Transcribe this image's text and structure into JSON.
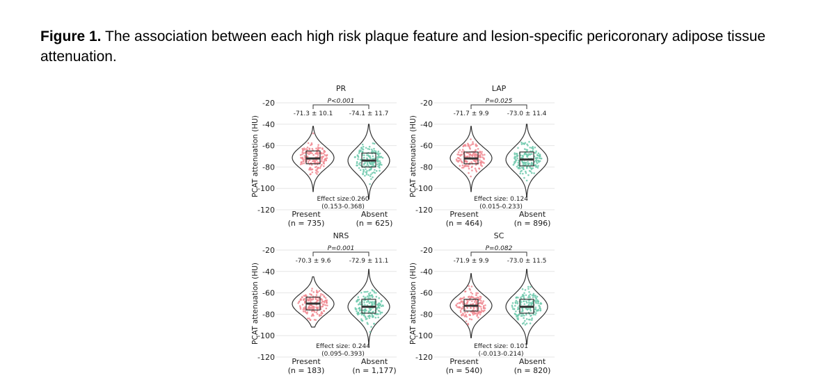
{
  "caption": {
    "label": "Figure 1.",
    "text": "The association between each high risk plaque feature and lesion-specific pericoronary adipose tissue attenuation."
  },
  "colors": {
    "present": "#f08a92",
    "absent": "#6fc9ad",
    "violin_stroke": "#333333",
    "grid": "#e6e6e6"
  },
  "chart_data": [
    {
      "type": "violin",
      "title": "PR",
      "ylabel": "PCAT attenuation (HU)",
      "yticks": [
        "-20",
        "-40",
        "-60",
        "-80",
        "-100",
        "-120"
      ],
      "ylim": [
        -120,
        -20
      ],
      "p_value": "P<0.001",
      "effect_size": "Effect size:0.260",
      "effect_ci": "(0.153-0.368)",
      "groups": [
        {
          "name": "Present",
          "n_label": "(n = 735)",
          "stat_label": "-71.3 ± 10.1",
          "mean": -71.3,
          "sd": 10.1,
          "median": -72,
          "q1": -77,
          "q3": -65,
          "min": -103,
          "max": -42
        },
        {
          "name": "Absent",
          "n_label": "(n = 625)",
          "stat_label": "-74.1 ± 11.7",
          "mean": -74.1,
          "sd": 11.7,
          "median": -74,
          "q1": -80,
          "q3": -67,
          "min": -110,
          "max": -40
        }
      ]
    },
    {
      "type": "violin",
      "title": "LAP",
      "ylabel": "PCAT attenuation (HU)",
      "yticks": [
        "-20",
        "-40",
        "-60",
        "-80",
        "-100",
        "-120"
      ],
      "ylim": [
        -120,
        -20
      ],
      "p_value": "P=0.025",
      "effect_size": "Effect size: 0.124",
      "effect_ci": "(0.015-0.233)",
      "groups": [
        {
          "name": "Present",
          "n_label": "(n = 464)",
          "stat_label": "-71.7 ± 9.9",
          "mean": -71.7,
          "sd": 9.9,
          "median": -72,
          "q1": -77,
          "q3": -66,
          "min": -103,
          "max": -42
        },
        {
          "name": "Absent",
          "n_label": "(n = 896)",
          "stat_label": "-73.0 ± 11.4",
          "mean": -73.0,
          "sd": 11.4,
          "median": -73,
          "q1": -79,
          "q3": -66,
          "min": -108,
          "max": -40
        }
      ]
    },
    {
      "type": "violin",
      "title": "NRS",
      "ylabel": "PCAT attenuation (HU)",
      "yticks": [
        "-20",
        "-40",
        "-60",
        "-80",
        "-100",
        "-120"
      ],
      "ylim": [
        -120,
        -20
      ],
      "p_value": "P=0.001",
      "effect_size": "Effect size: 0.244",
      "effect_ci": "(0.095-0.393)",
      "groups": [
        {
          "name": "Present",
          "n_label": "(n = 183)",
          "stat_label": "-70.3 ± 9.6",
          "mean": -70.3,
          "sd": 9.6,
          "median": -70,
          "q1": -76,
          "q3": -64,
          "min": -92,
          "max": -45
        },
        {
          "name": "Absent",
          "n_label": "(n = 1,177)",
          "stat_label": "-72.9 ± 11.1",
          "mean": -72.9,
          "sd": 11.1,
          "median": -73,
          "q1": -79,
          "q3": -66,
          "min": -110,
          "max": -38
        }
      ]
    },
    {
      "type": "violin",
      "title": "SC",
      "ylabel": "PCAT attenuation (HU)",
      "yticks": [
        "-20",
        "-40",
        "-60",
        "-80",
        "-100",
        "-120"
      ],
      "ylim": [
        -120,
        -20
      ],
      "p_value": "P=0.082",
      "effect_size": "Effect size: 0.101",
      "effect_ci": "(-0.013-0.214)",
      "groups": [
        {
          "name": "Present",
          "n_label": "(n = 540)",
          "stat_label": "-71.9 ± 9.9",
          "mean": -71.9,
          "sd": 9.9,
          "median": -72,
          "q1": -77,
          "q3": -66,
          "min": -102,
          "max": -42
        },
        {
          "name": "Absent",
          "n_label": "(n = 820)",
          "stat_label": "-73.0 ± 11.5",
          "mean": -73.0,
          "sd": 11.5,
          "median": -73,
          "q1": -79,
          "q3": -66,
          "min": -108,
          "max": -38
        }
      ]
    }
  ]
}
